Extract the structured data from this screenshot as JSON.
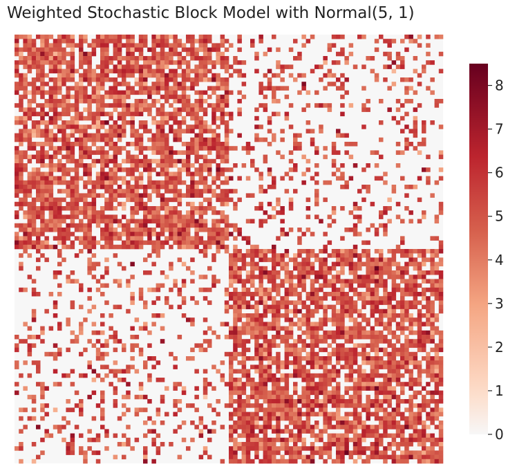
{
  "chart_data": {
    "type": "heatmap",
    "title": "Weighted Stochastic Block Model with Normal(5, 1)",
    "xlabel": "",
    "ylabel": "",
    "n_nodes": 100,
    "blocks": [
      {
        "name": "",
        "start": 0,
        "end": 49
      },
      {
        "name": "",
        "start": 50,
        "end": 99
      }
    ],
    "edge_probability": {
      "within_block": 0.75,
      "between_block": 0.2
    },
    "weight_distribution": {
      "family": "Normal",
      "mean": 5,
      "sd": 1
    },
    "xticks": [],
    "yticks": [],
    "colormap": "RdBu_r (upper half)",
    "colors": {
      "zero": "#f7f7f7",
      "low": "#fddbc7",
      "mid": "#ef8a62",
      "high": "#c9353a",
      "max": "#67001f"
    },
    "colorbar": {
      "min": 0,
      "max": 8.5,
      "ticks": [
        "0",
        "1",
        "2",
        "3",
        "4",
        "5",
        "6",
        "7",
        "8"
      ]
    }
  }
}
